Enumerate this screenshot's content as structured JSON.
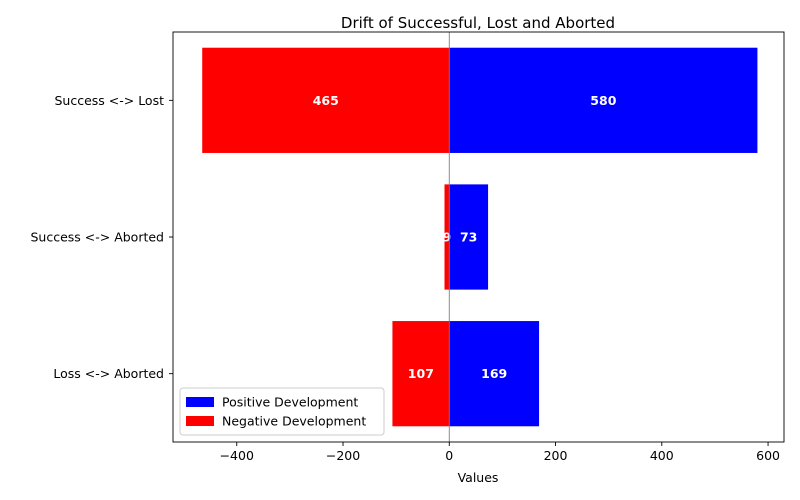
{
  "chart_data": {
    "type": "bar",
    "orientation": "horizontal",
    "title": "Drift of Successful, Lost and Aborted",
    "xlabel": "Values",
    "ylabel": "",
    "categories": [
      "Success <-> Lost",
      "Success <-> Aborted",
      "Loss <-> Aborted"
    ],
    "series": [
      {
        "name": "Positive Development",
        "color": "#0000ff",
        "values": [
          580,
          73,
          169
        ],
        "labels": [
          "580",
          "73",
          "169"
        ]
      },
      {
        "name": "Negative Development",
        "color": "#ff0000",
        "values": [
          -465,
          -9,
          -107
        ],
        "labels": [
          "465",
          "9",
          "107"
        ]
      }
    ],
    "xlim": [
      -520,
      630
    ],
    "xticks": [
      -400,
      -200,
      0,
      200,
      400,
      600
    ],
    "xtick_labels": [
      "−400",
      "−200",
      "0",
      "200",
      "400",
      "600"
    ],
    "zero_line": true,
    "grid": false,
    "legend": {
      "position": "lower-left"
    }
  }
}
